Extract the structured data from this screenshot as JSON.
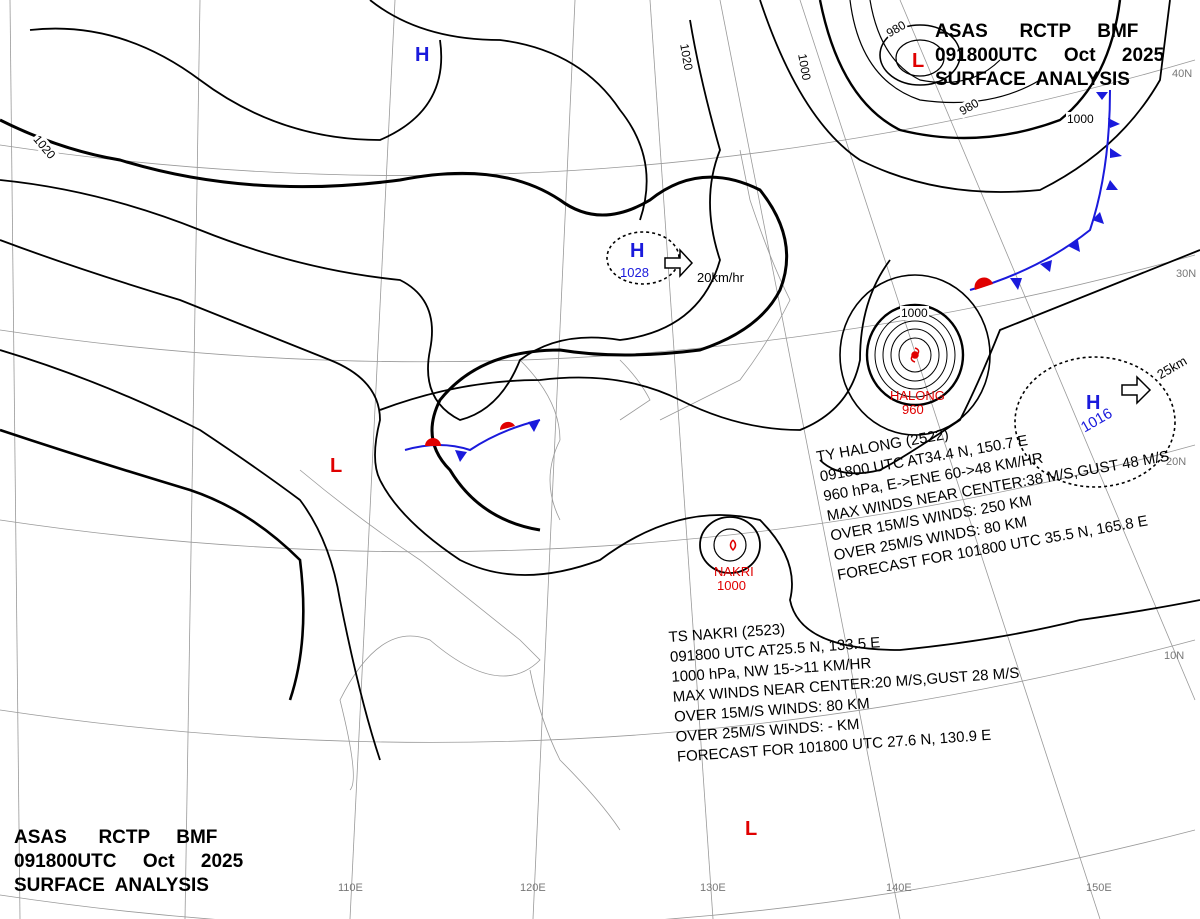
{
  "title": {
    "line1": "ASAS      RCTP     BMF",
    "line2": "091800UTC     Oct     2025",
    "line3": "SURFACE  ANALYSIS"
  },
  "title_bottom": {
    "line1": "ASAS      RCTP     BMF",
    "line2": "091800UTC     Oct     2025",
    "line3": "SURFACE  ANALYSIS"
  },
  "colors": {
    "high": "#1a1adc",
    "low": "#e00000",
    "isobar": "#000000",
    "grid": "#888888",
    "cold_front": "#1a1adc",
    "warm_front": "#e00000"
  },
  "lon_labels": [
    "110E",
    "120E",
    "130E",
    "140E",
    "150E"
  ],
  "lat_labels": [
    "40N",
    "30N",
    "20N",
    "10N"
  ],
  "isobar_labels": [
    "1020",
    "1020",
    "1000",
    "980",
    "980",
    "1000",
    "1000"
  ],
  "pressure_centers": [
    {
      "type": "H",
      "value": ""
    },
    {
      "type": "H",
      "value": "1028",
      "motion": "20km/hr"
    },
    {
      "type": "H",
      "value": "1016",
      "motion": "25km"
    },
    {
      "type": "L",
      "value": ""
    },
    {
      "type": "L",
      "value": ""
    },
    {
      "type": "L",
      "value": ""
    },
    {
      "type": "TY",
      "name": "HALONG",
      "value": "960"
    },
    {
      "type": "TS",
      "name": "NAKRI",
      "value": "1000"
    }
  ],
  "halong": {
    "lines": [
      "TY  HALONG  (2522)",
      "091800 UTC  AT34.4 N, 150.7 E",
      "960 hPa, E->ENE  60->48 KM/HR",
      "MAX WINDS NEAR CENTER:38 M/S,GUST 48 M/S",
      "OVER 15M/S WINDS: 250 KM",
      "OVER 25M/S WINDS: 80 KM",
      "FORECAST FOR 101800 UTC 35.5 N, 165.8 E"
    ]
  },
  "nakri": {
    "lines": [
      "TS  NAKRI  (2523)",
      "091800 UTC  AT25.5 N, 133.5 E",
      "1000 hPa, NW  15->11 KM/HR",
      "MAX WINDS NEAR CENTER:20 M/S,GUST 28 M/S",
      "OVER 15M/S WINDS: 80 KM",
      "OVER 25M/S WINDS: - KM",
      "FORECAST FOR 101800 UTC 27.6 N, 130.9 E"
    ]
  }
}
